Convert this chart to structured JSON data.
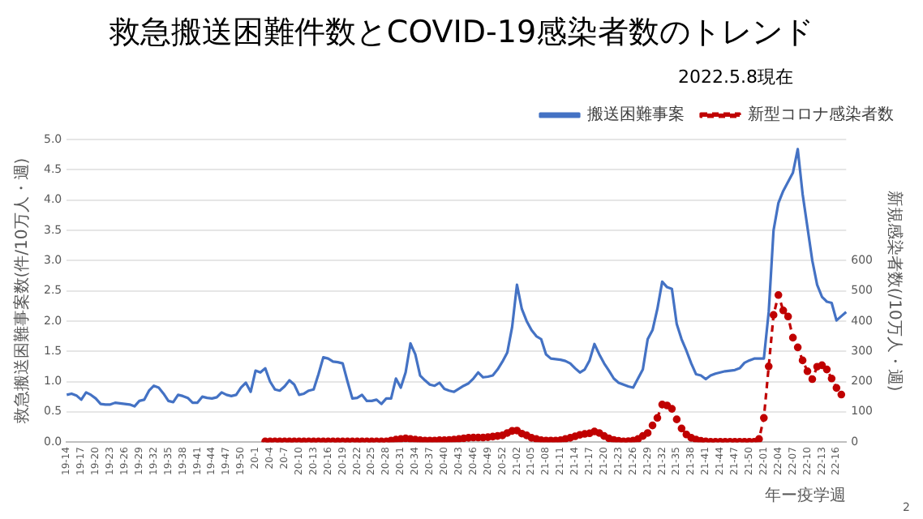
{
  "chart_data": {
    "type": "line",
    "title": "救急搬送困難件数とCOVID-19感染者数のトレンド",
    "subtitle": "2022.5.8現在",
    "xlabel": "年ー疫学週",
    "ylabel": "救急搬送困難事案数(件/10万人・週)",
    "y2label": "新規感染者数(/10万人・週)",
    "annotations": [
      "2"
    ],
    "categories": [
      "19-14",
      null,
      null,
      "19-17",
      null,
      null,
      "19-20",
      null,
      null,
      "19-23",
      null,
      null,
      "19-26",
      null,
      null,
      "19-29",
      null,
      null,
      "19-32",
      null,
      null,
      "19-35",
      null,
      null,
      "19-38",
      null,
      null,
      "19-41",
      null,
      null,
      "19-44",
      null,
      null,
      "19-47",
      null,
      null,
      "19-50",
      null,
      null,
      "20-1",
      null,
      null,
      "20-4",
      null,
      null,
      "20-7",
      null,
      null,
      "20-10",
      null,
      null,
      "20-13",
      null,
      null,
      "20-16",
      null,
      null,
      "20-19",
      null,
      null,
      "20-22",
      null,
      null,
      "20-25",
      null,
      null,
      "20-28",
      null,
      null,
      "20-31",
      null,
      null,
      "20-34",
      null,
      null,
      "20-37",
      null,
      null,
      "20-40",
      null,
      null,
      "20-43",
      null,
      null,
      "20-46",
      null,
      null,
      "20-49",
      null,
      null,
      "20-52",
      null,
      null,
      "21-02",
      null,
      null,
      "21-05",
      null,
      null,
      "21-08",
      null,
      null,
      "21-11",
      null,
      null,
      "21-14",
      null,
      null,
      "21-17",
      null,
      null,
      "21-20",
      null,
      null,
      "21-23",
      null,
      null,
      "21-26",
      null,
      null,
      "21-29",
      null,
      null,
      "21-32",
      null,
      null,
      "21-35",
      null,
      null,
      "21-38",
      null,
      null,
      "21-41",
      null,
      null,
      "21-44",
      null,
      null,
      "21-47",
      null,
      null,
      "21-50",
      null,
      null,
      "22-01",
      null,
      null,
      "22-04",
      null,
      null,
      "22-07",
      null,
      null,
      "22-10",
      null,
      null,
      "22-13",
      null,
      null,
      "22-16",
      null,
      null
    ],
    "series": [
      {
        "name": "搬送困難事案",
        "color": "#4472c4",
        "marker": "none",
        "line_style": "solid",
        "values": [
          0.78,
          0.8,
          0.77,
          0.7,
          0.82,
          0.78,
          0.72,
          0.63,
          0.62,
          0.62,
          0.65,
          0.64,
          0.63,
          0.62,
          0.59,
          0.68,
          0.7,
          0.85,
          0.93,
          0.9,
          0.8,
          0.68,
          0.66,
          0.78,
          0.76,
          0.73,
          0.65,
          0.65,
          0.75,
          0.73,
          0.72,
          0.74,
          0.82,
          0.78,
          0.76,
          0.78,
          0.9,
          0.98,
          0.83,
          1.18,
          1.15,
          1.22,
          1.0,
          0.87,
          0.85,
          0.92,
          1.02,
          0.95,
          0.78,
          0.8,
          0.85,
          0.87,
          1.12,
          1.4,
          1.38,
          1.33,
          1.32,
          1.3,
          1.0,
          0.72,
          0.73,
          0.78,
          0.68,
          0.68,
          0.7,
          0.63,
          0.72,
          0.72,
          1.05,
          0.9,
          1.15,
          1.63,
          1.45,
          1.1,
          1.02,
          0.95,
          0.93,
          0.98,
          0.88,
          0.85,
          0.83,
          0.88,
          0.93,
          0.97,
          1.05,
          1.15,
          1.07,
          1.08,
          1.1,
          1.2,
          1.33,
          1.48,
          1.9,
          2.6,
          2.2,
          2.0,
          1.85,
          1.75,
          1.7,
          1.45,
          1.38,
          1.37,
          1.36,
          1.34,
          1.3,
          1.22,
          1.15,
          1.2,
          1.35,
          1.62,
          1.45,
          1.3,
          1.18,
          1.05,
          0.98,
          0.95,
          0.92,
          0.9,
          1.05,
          1.2,
          1.7,
          1.85,
          2.2,
          2.65,
          2.56,
          2.53,
          1.95,
          1.7,
          1.51,
          1.3,
          1.12,
          1.1,
          1.04,
          1.1,
          1.13,
          1.15,
          1.17,
          1.18,
          1.19,
          1.22,
          1.31,
          1.35,
          1.38,
          1.38,
          1.38,
          2.15,
          3.5,
          3.95,
          4.15,
          4.3,
          4.45,
          4.84,
          4.1,
          3.55,
          3.0,
          2.6,
          2.4,
          2.32,
          2.3,
          2.01,
          2.08,
          2.15
        ]
      },
      {
        "name": "新型コロナ感染者数",
        "color": "#c00000",
        "axis": "y2",
        "marker": "circle",
        "line_style": "dashed",
        "values": [
          null,
          null,
          null,
          null,
          null,
          null,
          null,
          null,
          null,
          null,
          null,
          null,
          null,
          null,
          null,
          null,
          null,
          null,
          null,
          null,
          null,
          null,
          null,
          null,
          null,
          null,
          null,
          null,
          null,
          null,
          null,
          null,
          null,
          null,
          null,
          null,
          null,
          null,
          null,
          null,
          null,
          2,
          2,
          2,
          2,
          2,
          2,
          2,
          2,
          2,
          2,
          2,
          2,
          2,
          2,
          2,
          2,
          2,
          2,
          2,
          2,
          2,
          2,
          2,
          2,
          2,
          2,
          5,
          8,
          10,
          12,
          10,
          8,
          6,
          5,
          5,
          5,
          6,
          6,
          7,
          8,
          10,
          12,
          14,
          15,
          15,
          15,
          16,
          18,
          20,
          22,
          30,
          37,
          38,
          28,
          22,
          14,
          10,
          6,
          5,
          5,
          5,
          6,
          10,
          14,
          19,
          24,
          27,
          29,
          35,
          30,
          20,
          12,
          7,
          4,
          2,
          3,
          5,
          10,
          20,
          30,
          55,
          80,
          124,
          121,
          110,
          75,
          45,
          25,
          14,
          8,
          4,
          2,
          1,
          1,
          1,
          1,
          1,
          1,
          1,
          1,
          1,
          1,
          10,
          80,
          250,
          420,
          486,
          435,
          415,
          345,
          313,
          270,
          234,
          208,
          249,
          254,
          240,
          210,
          179,
          157,
          null
        ]
      }
    ],
    "ylim": [
      0,
      5
    ],
    "yticks": [
      {
        "value": 0,
        "label": "0.0"
      },
      {
        "value": 0.5,
        "label": "0.5"
      },
      {
        "value": 1,
        "label": "1.0"
      },
      {
        "value": 1.5,
        "label": "1.5"
      },
      {
        "value": 2,
        "label": "2.0"
      },
      {
        "value": 2.5,
        "label": "2.5"
      },
      {
        "value": 3,
        "label": "3.0"
      },
      {
        "value": 3.5,
        "label": "3.5"
      },
      {
        "value": 4,
        "label": "4.0"
      },
      {
        "value": 4.5,
        "label": "4.5"
      },
      {
        "value": 5,
        "label": "5.0"
      }
    ],
    "y2lim": [
      0,
      1000
    ],
    "y2ticks": [
      0,
      100,
      200,
      300,
      400,
      500,
      600
    ],
    "grid": "y",
    "legend": "top right"
  }
}
